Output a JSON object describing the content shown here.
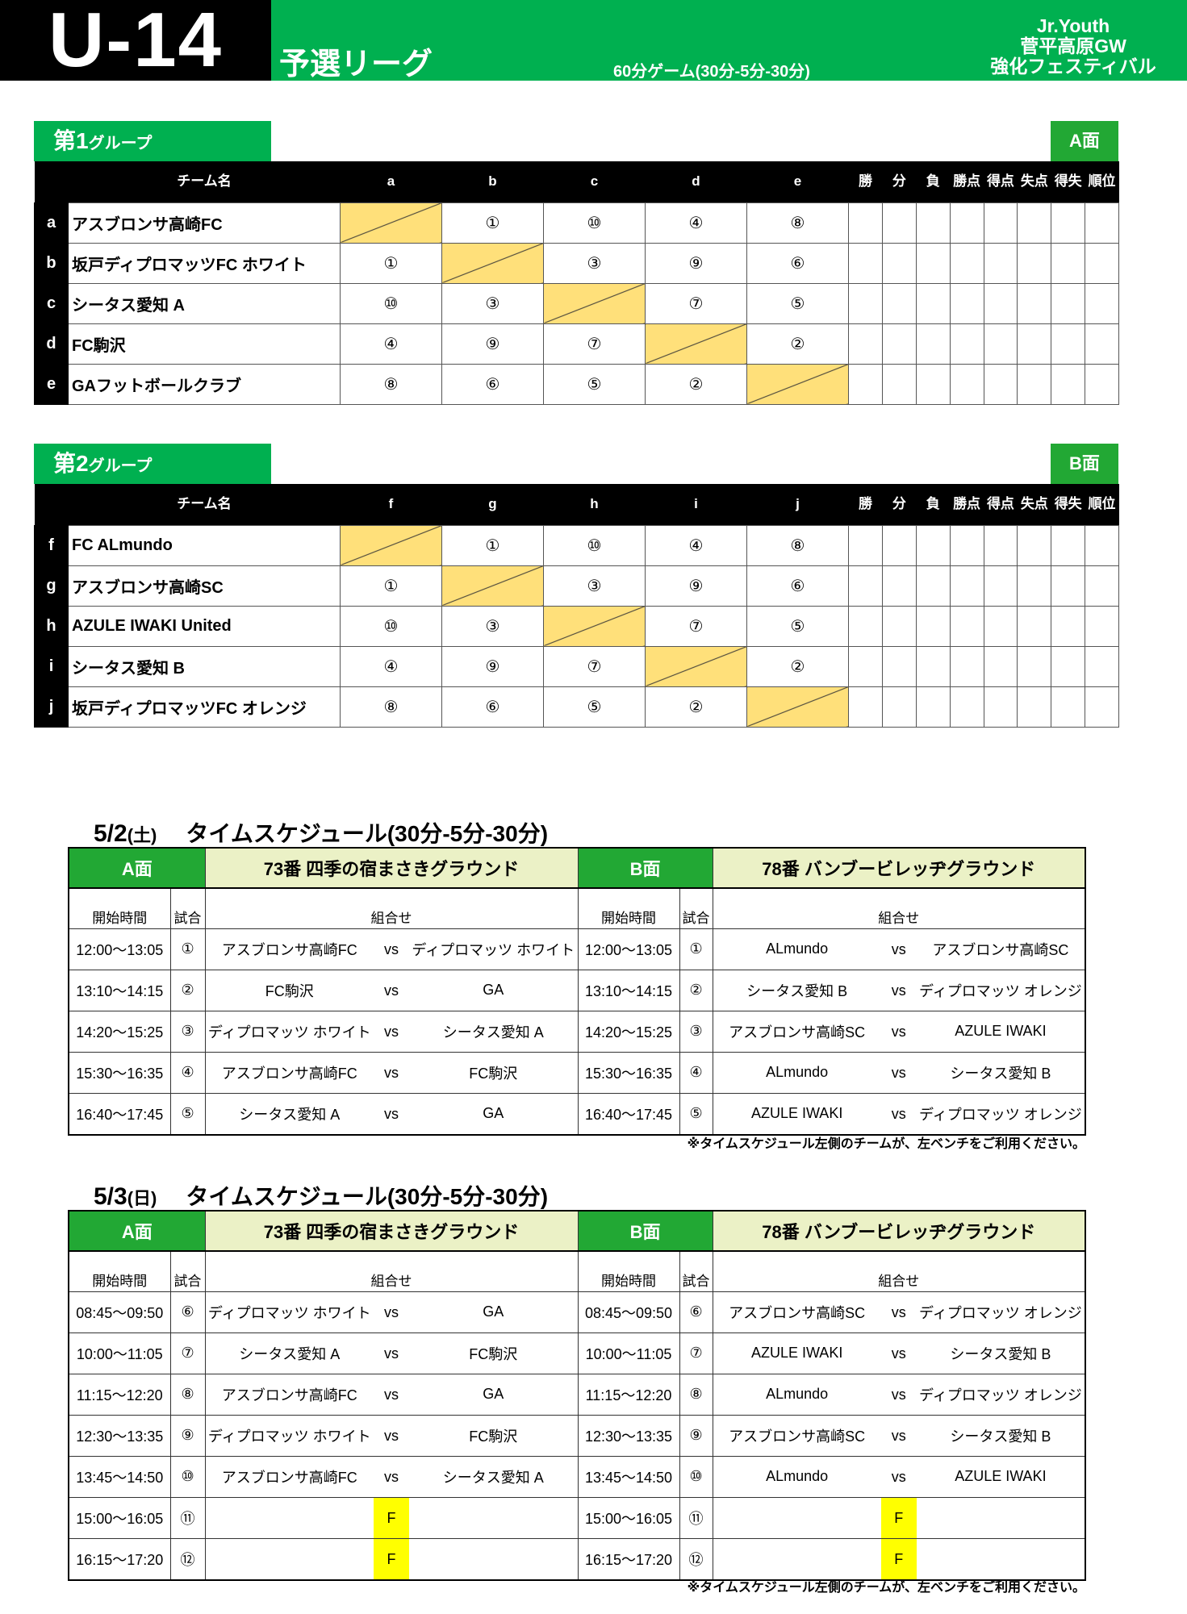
{
  "header": {
    "category": "U-14",
    "stage": "予選リーグ",
    "game_format": "60分ゲーム(30分-5分-30分)",
    "brand": [
      "Jr.Youth",
      "菅平高原GW",
      "強化フェスティバル"
    ]
  },
  "colors": {
    "green": "#00b050",
    "diagonal": "#ffe07a",
    "venue": "#ebf1c6",
    "final": "#ffff00"
  },
  "league_headers": {
    "team": "チーム名",
    "stats": [
      "勝",
      "分",
      "負",
      "勝点",
      "得点",
      "失点",
      "得失",
      "順位"
    ]
  },
  "groups": [
    {
      "num": "第1",
      "suffix": "グループ",
      "face": "A面",
      "letters": [
        "a",
        "b",
        "c",
        "d",
        "e"
      ],
      "teams": [
        "アスブロンサ高崎FC",
        "坂戸ディプロマッツFC ホワイト",
        "シータス愛知 A",
        "FC駒沢",
        "GAフットボールクラブ"
      ],
      "matrix": [
        [
          "",
          "①",
          "⑩",
          "④",
          "⑧"
        ],
        [
          "①",
          "",
          "③",
          "⑨",
          "⑥"
        ],
        [
          "⑩",
          "③",
          "",
          "⑦",
          "⑤"
        ],
        [
          "④",
          "⑨",
          "⑦",
          "",
          "②"
        ],
        [
          "⑧",
          "⑥",
          "⑤",
          "②",
          ""
        ]
      ]
    },
    {
      "num": "第2",
      "suffix": "グループ",
      "face": "B面",
      "letters": [
        "f",
        "g",
        "h",
        "i",
        "j"
      ],
      "teams": [
        "FC ALmundo",
        "アスブロンサ高崎SC",
        "AZULE IWAKI United",
        "シータス愛知 B",
        "坂戸ディプロマッツFC オレンジ"
      ],
      "matrix": [
        [
          "",
          "①",
          "⑩",
          "④",
          "⑧"
        ],
        [
          "①",
          "",
          "③",
          "⑨",
          "⑥"
        ],
        [
          "⑩",
          "③",
          "",
          "⑦",
          "⑤"
        ],
        [
          "④",
          "⑨",
          "⑦",
          "",
          "②"
        ],
        [
          "⑧",
          "⑥",
          "⑤",
          "②",
          ""
        ]
      ]
    }
  ],
  "schedule_headers": {
    "start": "開始時間",
    "match": "試合",
    "combo": "組合せ",
    "vs": "vs"
  },
  "schedules": [
    {
      "date": "5/2",
      "dow": "(土)",
      "title": "タイムスケジュール(30分-5分-30分)",
      "a_face": "A面",
      "a_venue": "73番 四季の宿まさきグラウンド",
      "b_face": "B面",
      "b_venue": "78番 バンブービレッヂグラウンド",
      "rows": [
        {
          "a_time": "12:00～13:05",
          "a_no": "①",
          "a_home": "アスブロンサ高崎FC",
          "a_away": "ディプロマッツ ホワイト",
          "b_time": "12:00～13:05",
          "b_no": "①",
          "b_home": "ALmundo",
          "b_away": "アスブロンサ高崎SC"
        },
        {
          "a_time": "13:10～14:15",
          "a_no": "②",
          "a_home": "FC駒沢",
          "a_away": "GA",
          "b_time": "13:10～14:15",
          "b_no": "②",
          "b_home": "シータス愛知 B",
          "b_away": "ディプロマッツ オレンジ"
        },
        {
          "a_time": "14:20～15:25",
          "a_no": "③",
          "a_home": "ディプロマッツ ホワイト",
          "a_away": "シータス愛知 A",
          "b_time": "14:20～15:25",
          "b_no": "③",
          "b_home": "アスブロンサ高崎SC",
          "b_away": "AZULE IWAKI"
        },
        {
          "a_time": "15:30～16:35",
          "a_no": "④",
          "a_home": "アスブロンサ高崎FC",
          "a_away": "FC駒沢",
          "b_time": "15:30～16:35",
          "b_no": "④",
          "b_home": "ALmundo",
          "b_away": "シータス愛知 B"
        },
        {
          "a_time": "16:40～17:45",
          "a_no": "⑤",
          "a_home": "シータス愛知 A",
          "a_away": "GA",
          "b_time": "16:40～17:45",
          "b_no": "⑤",
          "b_home": "AZULE IWAKI",
          "b_away": "ディプロマッツ オレンジ"
        }
      ],
      "note": "※タイムスケジュール左側のチームが、左ベンチをご利用ください。"
    },
    {
      "date": "5/3",
      "dow": "(日)",
      "title": "タイムスケジュール(30分-5分-30分)",
      "a_face": "A面",
      "a_venue": "73番 四季の宿まさきグラウンド",
      "b_face": "B面",
      "b_venue": "78番 バンブービレッヂグラウンド",
      "rows": [
        {
          "a_time": "08:45～09:50",
          "a_no": "⑥",
          "a_home": "ディプロマッツ ホワイト",
          "a_away": "GA",
          "b_time": "08:45～09:50",
          "b_no": "⑥",
          "b_home": "アスブロンサ高崎SC",
          "b_away": "ディプロマッツ オレンジ"
        },
        {
          "a_time": "10:00～11:05",
          "a_no": "⑦",
          "a_home": "シータス愛知 A",
          "a_away": "FC駒沢",
          "b_time": "10:00～11:05",
          "b_no": "⑦",
          "b_home": "AZULE IWAKI",
          "b_away": "シータス愛知 B"
        },
        {
          "a_time": "11:15～12:20",
          "a_no": "⑧",
          "a_home": "アスブロンサ高崎FC",
          "a_away": "GA",
          "b_time": "11:15～12:20",
          "b_no": "⑧",
          "b_home": "ALmundo",
          "b_away": "ディプロマッツ オレンジ"
        },
        {
          "a_time": "12:30～13:35",
          "a_no": "⑨",
          "a_home": "ディプロマッツ ホワイト",
          "a_away": "FC駒沢",
          "b_time": "12:30～13:35",
          "b_no": "⑨",
          "b_home": "アスブロンサ高崎SC",
          "b_away": "シータス愛知 B"
        },
        {
          "a_time": "13:45～14:50",
          "a_no": "⑩",
          "a_home": "アスブロンサ高崎FC",
          "a_away": "シータス愛知 A",
          "b_time": "13:45～14:50",
          "b_no": "⑩",
          "b_home": "ALmundo",
          "b_away": "AZULE IWAKI"
        },
        {
          "a_time": "15:00～16:05",
          "a_no": "⑪",
          "a_home": "",
          "a_away": "",
          "a_mid": "F",
          "b_time": "15:00～16:05",
          "b_no": "⑪",
          "b_home": "",
          "b_away": "",
          "b_mid": "F"
        },
        {
          "a_time": "16:15～17:20",
          "a_no": "⑫",
          "a_home": "",
          "a_away": "",
          "a_mid": "F",
          "b_time": "16:15～17:20",
          "b_no": "⑫",
          "b_home": "",
          "b_away": "",
          "b_mid": "F"
        }
      ],
      "note": "※タイムスケジュール左側のチームが、左ベンチをご利用ください。"
    }
  ]
}
